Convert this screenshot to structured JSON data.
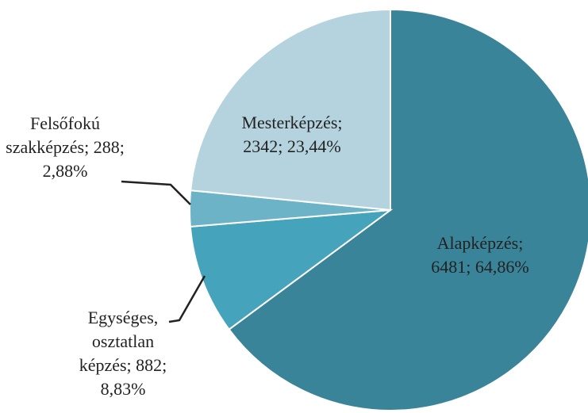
{
  "chart_data": {
    "type": "pie",
    "categories": [
      "Alapképzés",
      "Egységes, osztatlan képzés",
      "Felsőfokú szakképzés",
      "Mesterképzés"
    ],
    "values": [
      6481,
      882,
      288,
      2342
    ],
    "percents": [
      64.86,
      8.83,
      2.88,
      23.44
    ],
    "percent_labels": [
      "64,86%",
      "8,83%",
      "2,88%",
      "23,44%"
    ],
    "label_separator": ";",
    "colors": [
      "#3a8499",
      "#45a3bb",
      "#6db3c7",
      "#b4d3de"
    ]
  }
}
